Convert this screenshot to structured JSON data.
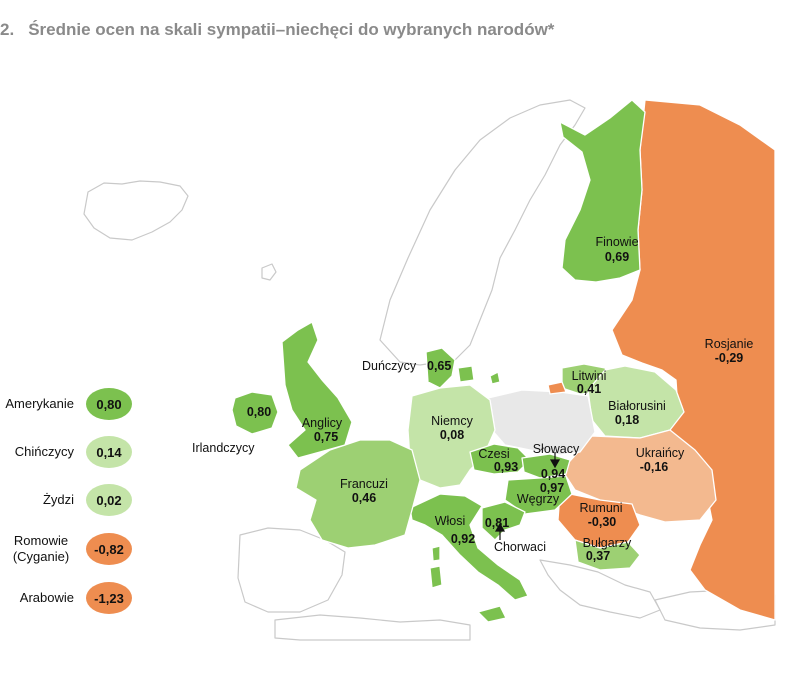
{
  "title": {
    "number": "2.",
    "text": "Średnie ocen na skali sympatii–niechęci do wybranych narodów*"
  },
  "colors": {
    "green_dark": "#7cc14f",
    "green_mid": "#9dd073",
    "green_light": "#c4e4a8",
    "orange_dark": "#ee8d50",
    "orange_light": "#f3b98f",
    "grey": "#e8e8e8"
  },
  "legend": [
    {
      "label": "Amerykanie",
      "value": "0,80",
      "color": "#7cc14f"
    },
    {
      "label": "Chińczycy",
      "value": "0,14",
      "color": "#c4e4a8"
    },
    {
      "label": "Żydzi",
      "value": "0,02",
      "color": "#c4e4a8"
    },
    {
      "label": "Romowie (Cyganie)",
      "value": "-0,82",
      "color": "#ee8d50"
    },
    {
      "label": "Arabowie",
      "value": "-1,23",
      "color": "#ee8d50"
    }
  ],
  "countries": {
    "finowie": {
      "label": "Finowie",
      "value": "0,69"
    },
    "rosjanie": {
      "label": "Rosjanie",
      "value": "-0,29"
    },
    "dunczycy": {
      "label": "Duńczycy",
      "value": "0,65"
    },
    "litwini": {
      "label": "Litwini",
      "value": "0,41"
    },
    "bialorusini": {
      "label": "Białorusini",
      "value": "0,18"
    },
    "irlandczycy": {
      "label": "Irlandczycy",
      "value": "0,80"
    },
    "anglicy": {
      "label": "Anglicy",
      "value": "0,75"
    },
    "niemcy": {
      "label": "Niemcy",
      "value": "0,08"
    },
    "slowacy": {
      "label": "Słowacy",
      "value": "0,94"
    },
    "czesi": {
      "label": "Czesi",
      "value": "0,93"
    },
    "ukraincy": {
      "label": "Ukraińcy",
      "value": "-0,16"
    },
    "wegrzy": {
      "label": "Węgrzy",
      "value": "0,97"
    },
    "francuzi": {
      "label": "Francuzi",
      "value": "0,46"
    },
    "rumuni": {
      "label": "Rumuni",
      "value": "-0,30"
    },
    "wlosi": {
      "label": "Włosi",
      "value": "0,92"
    },
    "chorwaci": {
      "label": "Chorwaci",
      "value": "0,81"
    },
    "bulgarzy": {
      "label": "Bułgarzy",
      "value": "0,37"
    }
  }
}
